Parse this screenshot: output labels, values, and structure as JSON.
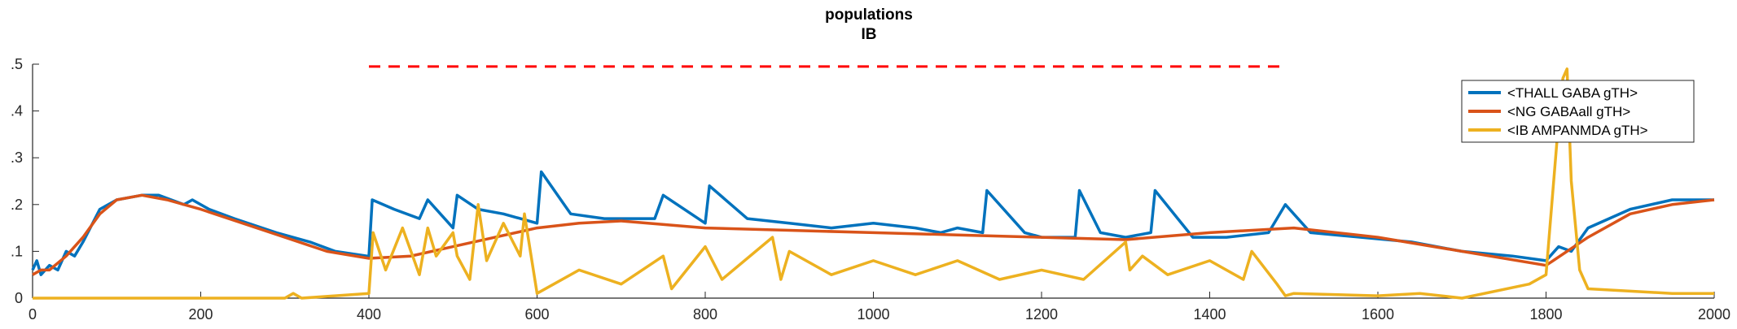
{
  "chart_data": {
    "type": "line",
    "title": "populations",
    "subtitle": "IB",
    "xlabel": "",
    "ylabel": "",
    "xlim": [
      0,
      2000
    ],
    "ylim": [
      0,
      0.5
    ],
    "xticks": [
      0,
      200,
      400,
      600,
      800,
      1000,
      1200,
      1400,
      1600,
      1800,
      2000
    ],
    "yticks": [
      0,
      0.1,
      0.2,
      0.3,
      0.4,
      0.5
    ],
    "ytick_labels": [
      "0",
      ".1",
      ".2",
      ".3",
      ".4",
      ".5"
    ],
    "grid": false,
    "legend": "top-right",
    "colors": {
      "blue": "#0072BD",
      "orange": "#D95319",
      "yellow": "#EDB120",
      "red": "#FF0000"
    },
    "annotation": {
      "style": "red-dashed",
      "x": [
        400,
        1490
      ],
      "y": 0.495
    },
    "series": [
      {
        "name": "<THALL GABA gTH>",
        "color": "#0072BD",
        "x": [
          0,
          5,
          10,
          20,
          30,
          40,
          50,
          60,
          80,
          100,
          130,
          150,
          180,
          190,
          210,
          240,
          290,
          330,
          360,
          398,
          400,
          404,
          430,
          460,
          470,
          500,
          505,
          530,
          560,
          600,
          605,
          640,
          680,
          740,
          750,
          800,
          805,
          850,
          900,
          950,
          1000,
          1050,
          1080,
          1100,
          1130,
          1135,
          1180,
          1200,
          1240,
          1245,
          1270,
          1300,
          1330,
          1335,
          1380,
          1420,
          1470,
          1490,
          1520,
          1580,
          1640,
          1700,
          1760,
          1800,
          1815,
          1830,
          1850,
          1900,
          1950,
          2000
        ],
        "y": [
          0.06,
          0.08,
          0.05,
          0.07,
          0.06,
          0.1,
          0.09,
          0.12,
          0.19,
          0.21,
          0.22,
          0.22,
          0.2,
          0.21,
          0.19,
          0.17,
          0.14,
          0.12,
          0.1,
          0.09,
          0.09,
          0.21,
          0.19,
          0.17,
          0.21,
          0.15,
          0.22,
          0.19,
          0.18,
          0.16,
          0.27,
          0.18,
          0.17,
          0.17,
          0.22,
          0.16,
          0.24,
          0.17,
          0.16,
          0.15,
          0.16,
          0.15,
          0.14,
          0.15,
          0.14,
          0.23,
          0.14,
          0.13,
          0.13,
          0.23,
          0.14,
          0.13,
          0.14,
          0.23,
          0.13,
          0.13,
          0.14,
          0.2,
          0.14,
          0.13,
          0.12,
          0.1,
          0.09,
          0.08,
          0.11,
          0.1,
          0.15,
          0.19,
          0.21,
          0.21
        ]
      },
      {
        "name": "<NG GABAall gTH>",
        "color": "#D95319",
        "x": [
          0,
          10,
          20,
          40,
          60,
          80,
          100,
          130,
          160,
          200,
          250,
          300,
          350,
          400,
          450,
          500,
          550,
          600,
          650,
          700,
          800,
          900,
          1000,
          1100,
          1200,
          1300,
          1400,
          1500,
          1600,
          1700,
          1800,
          1850,
          1900,
          1950,
          2000
        ],
        "y": [
          0.05,
          0.06,
          0.06,
          0.09,
          0.13,
          0.18,
          0.21,
          0.22,
          0.21,
          0.19,
          0.16,
          0.13,
          0.1,
          0.085,
          0.09,
          0.11,
          0.13,
          0.15,
          0.16,
          0.165,
          0.15,
          0.145,
          0.14,
          0.135,
          0.13,
          0.125,
          0.14,
          0.15,
          0.13,
          0.1,
          0.07,
          0.13,
          0.18,
          0.2,
          0.21
        ]
      },
      {
        "name": "<IB AMPANMDA gTH>",
        "color": "#EDB120",
        "x": [
          0,
          300,
          310,
          320,
          400,
          405,
          420,
          440,
          460,
          470,
          480,
          500,
          505,
          520,
          530,
          540,
          560,
          580,
          585,
          600,
          650,
          700,
          750,
          760,
          800,
          820,
          880,
          890,
          900,
          950,
          1000,
          1050,
          1100,
          1150,
          1200,
          1250,
          1300,
          1305,
          1320,
          1350,
          1400,
          1440,
          1450,
          1480,
          1490,
          1500,
          1600,
          1650,
          1700,
          1780,
          1800,
          1815,
          1820,
          1825,
          1830,
          1840,
          1850,
          1900,
          1950,
          2000
        ],
        "y": [
          0,
          0,
          0.01,
          0,
          0.01,
          0.14,
          0.06,
          0.15,
          0.05,
          0.15,
          0.09,
          0.14,
          0.09,
          0.04,
          0.2,
          0.08,
          0.16,
          0.09,
          0.18,
          0.01,
          0.06,
          0.03,
          0.09,
          0.02,
          0.11,
          0.04,
          0.13,
          0.04,
          0.1,
          0.05,
          0.08,
          0.05,
          0.08,
          0.04,
          0.06,
          0.04,
          0.12,
          0.06,
          0.09,
          0.05,
          0.08,
          0.04,
          0.1,
          0.03,
          0.005,
          0.01,
          0.005,
          0.01,
          0,
          0.03,
          0.05,
          0.38,
          0.47,
          0.49,
          0.25,
          0.06,
          0.02,
          0.015,
          0.01,
          0.01
        ]
      }
    ]
  }
}
